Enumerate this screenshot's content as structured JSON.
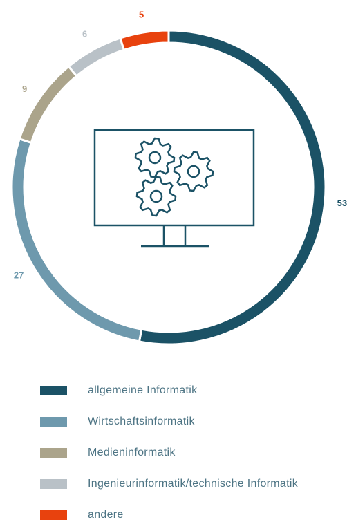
{
  "chart_data": {
    "type": "donut",
    "categories": [
      "allgemeine Informatik",
      "Wirtschaftsinformatik",
      "Medieninformatik",
      "Ingenieurinformatik/technische Informatik",
      "andere"
    ],
    "values": [
      53,
      27,
      9,
      6,
      5
    ],
    "colors": [
      "#1b5266",
      "#6e99ad",
      "#aba48b",
      "#b9c1c7",
      "#e8420e"
    ]
  }
}
